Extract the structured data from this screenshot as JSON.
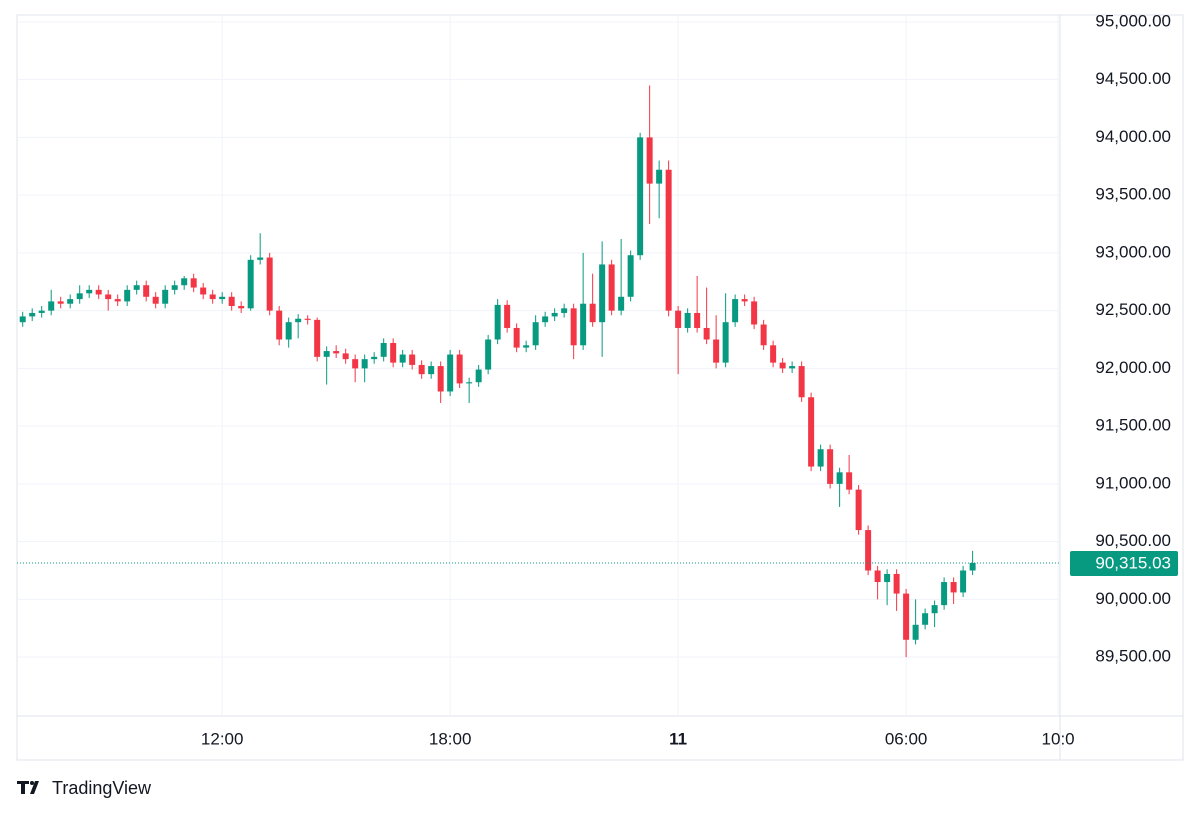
{
  "chart_data": {
    "type": "candlestick",
    "x": [
      6.75,
      7,
      7.25,
      7.5,
      7.75,
      8,
      8.25,
      8.5,
      8.75,
      9,
      9.25,
      9.5,
      9.75,
      10,
      10.25,
      10.5,
      10.75,
      11,
      11.25,
      11.5,
      11.75,
      12,
      12.25,
      12.5,
      12.75,
      13,
      13.25,
      13.5,
      13.75,
      14,
      14.25,
      14.5,
      14.75,
      15,
      15.25,
      15.5,
      15.75,
      16,
      16.25,
      16.5,
      16.75,
      17,
      17.25,
      17.5,
      17.75,
      18,
      18.25,
      18.5,
      18.75,
      19,
      19.25,
      19.5,
      19.75,
      20,
      20.25,
      20.5,
      20.75,
      21,
      21.25,
      21.5,
      21.75,
      22,
      22.25,
      22.5,
      22.75,
      23,
      23.25,
      23.5,
      23.75,
      24,
      24.25,
      24.5,
      24.75,
      25,
      25.25,
      25.5,
      25.75,
      26,
      26.25,
      26.5,
      26.75,
      27,
      27.25,
      27.5,
      27.75,
      28,
      28.25,
      28.5,
      28.75,
      29,
      29.25,
      29.5,
      29.75,
      30,
      30.25,
      30.5,
      30.75,
      31,
      31.25,
      31.5,
      31.75
    ],
    "open": [
      92400,
      92450,
      92480,
      92500,
      92580,
      92560,
      92600,
      92650,
      92680,
      92640,
      92600,
      92580,
      92680,
      92720,
      92620,
      92560,
      92680,
      92720,
      92780,
      92700,
      92640,
      92600,
      92620,
      92540,
      92520,
      92940,
      92960,
      92500,
      92250,
      92400,
      92430,
      92420,
      92100,
      92150,
      92130,
      92080,
      92000,
      92080,
      92100,
      92220,
      92050,
      92120,
      92030,
      91950,
      92020,
      91800,
      92120,
      91870,
      91880,
      91990,
      92250,
      92550,
      92350,
      92180,
      92200,
      92400,
      92450,
      92480,
      92520,
      92200,
      92560,
      92400,
      92900,
      92500,
      92620,
      92980,
      94000,
      93600,
      93720,
      92500,
      92350,
      92480,
      92350,
      92250,
      92050,
      92400,
      92600,
      92580,
      92380,
      92200,
      92050,
      92000,
      92020,
      91750,
      91150,
      91300,
      91000,
      91100,
      90950,
      90600,
      90250,
      90150,
      90220,
      90050,
      89650,
      89780,
      89880,
      89950,
      90150,
      90060,
      90250
    ],
    "high": [
      92490,
      92520,
      92540,
      92680,
      92620,
      92640,
      92720,
      92720,
      92720,
      92680,
      92640,
      92720,
      92760,
      92760,
      92660,
      92720,
      92760,
      92800,
      92820,
      92740,
      92680,
      92660,
      92660,
      92580,
      92980,
      93170,
      93000,
      92540,
      92440,
      92470,
      92460,
      92440,
      92190,
      92200,
      92170,
      92120,
      92120,
      92140,
      92260,
      92260,
      92160,
      92160,
      92070,
      92060,
      92060,
      92160,
      92160,
      91920,
      92030,
      92290,
      92600,
      92590,
      92390,
      92240,
      92460,
      92490,
      92520,
      92560,
      92560,
      93000,
      92820,
      93100,
      92940,
      93120,
      93020,
      94040,
      94450,
      93800,
      93800,
      92540,
      92520,
      92800,
      92700,
      92460,
      92650,
      92640,
      92640,
      92620,
      92420,
      92240,
      92090,
      92060,
      92060,
      91790,
      91340,
      91340,
      91140,
      91250,
      90990,
      90640,
      90290,
      90260,
      90260,
      90090,
      90000,
      89920,
      89990,
      90190,
      90190,
      90290,
      90420
    ],
    "low": [
      92360,
      92410,
      92440,
      92460,
      92520,
      92520,
      92560,
      92610,
      92600,
      92500,
      92540,
      92540,
      92640,
      92580,
      92520,
      92520,
      92640,
      92680,
      92660,
      92600,
      92560,
      92560,
      92500,
      92480,
      92500,
      92900,
      92460,
      92200,
      92180,
      92260,
      92380,
      92060,
      91860,
      92090,
      92040,
      91880,
      91880,
      92040,
      92060,
      92010,
      92010,
      91990,
      91910,
      91910,
      91700,
      91760,
      91830,
      91700,
      91840,
      91950,
      92210,
      92310,
      92140,
      92140,
      92160,
      92360,
      92410,
      92440,
      92080,
      92160,
      92360,
      92100,
      92460,
      92460,
      92580,
      92940,
      93250,
      93300,
      92450,
      91950,
      92310,
      92310,
      92210,
      92000,
      92010,
      92360,
      92540,
      92340,
      92160,
      92010,
      91960,
      91960,
      91710,
      91110,
      91110,
      90960,
      90800,
      90910,
      90560,
      90210,
      90000,
      89950,
      89900,
      89500,
      89610,
      89740,
      89760,
      89910,
      89960,
      90020,
      90210
    ],
    "close": [
      92450,
      92480,
      92500,
      92580,
      92560,
      92600,
      92650,
      92680,
      92640,
      92600,
      92580,
      92680,
      92720,
      92620,
      92560,
      92680,
      92720,
      92780,
      92700,
      92640,
      92600,
      92620,
      92540,
      92520,
      92940,
      92960,
      92500,
      92250,
      92400,
      92430,
      92420,
      92100,
      92150,
      92130,
      92080,
      92000,
      92080,
      92100,
      92220,
      92050,
      92120,
      92030,
      91950,
      92020,
      91800,
      92120,
      91870,
      91880,
      91990,
      92250,
      92550,
      92350,
      92180,
      92200,
      92400,
      92450,
      92480,
      92520,
      92200,
      92560,
      92400,
      92900,
      92500,
      92620,
      92980,
      94000,
      93600,
      93720,
      92500,
      92350,
      92480,
      92350,
      92250,
      92050,
      92400,
      92600,
      92580,
      92380,
      92200,
      92050,
      92000,
      92020,
      91750,
      91150,
      91300,
      91000,
      91100,
      90950,
      90600,
      90250,
      90150,
      90220,
      90050,
      89650,
      89780,
      89880,
      89950,
      90150,
      90060,
      90250,
      90315.03
    ],
    "up_color": "#089981",
    "down_color": "#f23645",
    "xlim": [
      6.6,
      34.05
    ],
    "xticks": [
      {
        "value": 12,
        "label": "12:00"
      },
      {
        "value": 18,
        "label": "18:00"
      },
      {
        "value": 24,
        "label": "11"
      },
      {
        "value": 30,
        "label": "06:00"
      },
      {
        "value": 34,
        "label": "10:0"
      }
    ],
    "ylim": [
      88990,
      95060
    ],
    "yticks": [
      {
        "value": 89500,
        "label": "89,500.00"
      },
      {
        "value": 90000,
        "label": "90,000.00"
      },
      {
        "value": 90500,
        "label": "90,500.00"
      },
      {
        "value": 91000,
        "label": "91,000.00"
      },
      {
        "value": 91500,
        "label": "91,500.00"
      },
      {
        "value": 92000,
        "label": "92,000.00"
      },
      {
        "value": 92500,
        "label": "92,500.00"
      },
      {
        "value": 93000,
        "label": "93,000.00"
      },
      {
        "value": 93500,
        "label": "93,500.00"
      },
      {
        "value": 94000,
        "label": "94,000.00"
      },
      {
        "value": 94500,
        "label": "94,500.00"
      },
      {
        "value": 95000,
        "label": "95,000.00"
      }
    ],
    "last_price": {
      "value": 90315.03,
      "label": "90,315.03"
    },
    "grid": true
  },
  "brand": "TradingView"
}
